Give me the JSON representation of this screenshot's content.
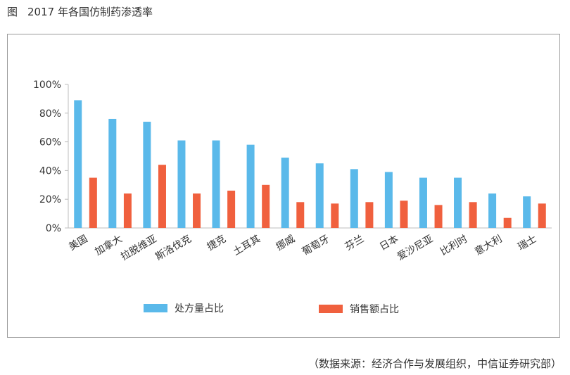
{
  "figure": {
    "label": "图",
    "title": "2017 年各国仿制药渗透率",
    "source": "（数据来源：经济合作与发展组织，中信证券研究部）"
  },
  "colors": {
    "series1": "#5ab9ea",
    "series2": "#f0603e",
    "axis": "#bdbdbd"
  },
  "chart_data": {
    "type": "bar",
    "title": "2017 年各国仿制药渗透率",
    "xlabel": "",
    "ylabel": "",
    "ylim": [
      0,
      100
    ],
    "yticks": [
      "0%",
      "20%",
      "40%",
      "60%",
      "80%",
      "100%"
    ],
    "categories": [
      "美国",
      "加拿大",
      "拉脱维亚",
      "斯洛伐克",
      "捷克",
      "土耳其",
      "挪威",
      "葡萄牙",
      "芬兰",
      "日本",
      "爱沙尼亚",
      "比利时",
      "意大利",
      "瑞士"
    ],
    "series": [
      {
        "name": "处方量占比",
        "values": [
          89,
          76,
          74,
          61,
          61,
          58,
          49,
          45,
          41,
          39,
          35,
          35,
          24,
          22
        ]
      },
      {
        "name": "销售额占比",
        "values": [
          35,
          24,
          44,
          24,
          26,
          30,
          18,
          17,
          18,
          19,
          16,
          18,
          7,
          17
        ]
      }
    ],
    "grid": false,
    "legend": "bottom"
  }
}
